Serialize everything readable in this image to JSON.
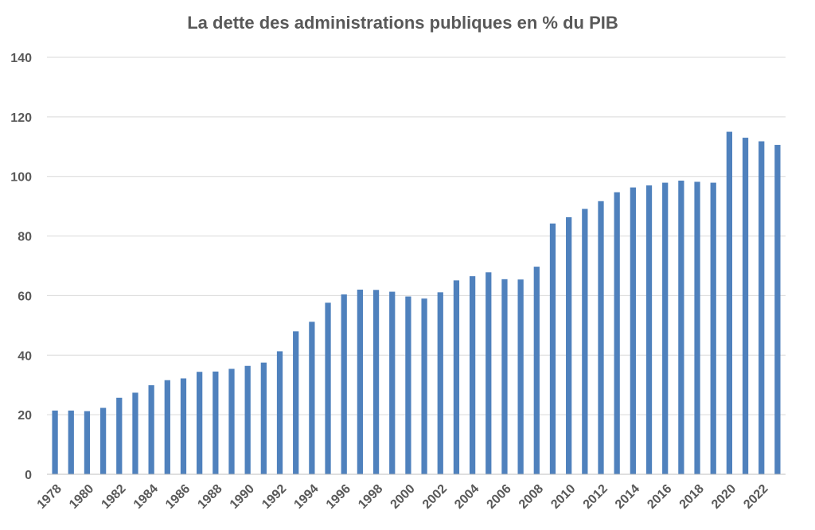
{
  "chart_data": {
    "type": "bar",
    "title": "La dette des administrations publiques en % du PIB",
    "xlabel": "",
    "ylabel": "",
    "ylim": [
      0,
      140
    ],
    "yticks": [
      0,
      20,
      40,
      60,
      80,
      100,
      120,
      140
    ],
    "grid": true,
    "legend": "none",
    "bar_color": "#4f81bd",
    "categories": [
      "1978",
      "1979",
      "1980",
      "1981",
      "1982",
      "1983",
      "1984",
      "1985",
      "1986",
      "1987",
      "1988",
      "1989",
      "1990",
      "1991",
      "1992",
      "1993",
      "1994",
      "1995",
      "1996",
      "1997",
      "1998",
      "1999",
      "2000",
      "2001",
      "2002",
      "2003",
      "2004",
      "2005",
      "2006",
      "2007",
      "2008",
      "2009",
      "2010",
      "2011",
      "2012",
      "2013",
      "2014",
      "2015",
      "2016",
      "2017",
      "2018",
      "2019",
      "2020",
      "2021",
      "2022",
      "2023"
    ],
    "x_tick_labels": [
      "1978",
      "",
      "1980",
      "",
      "1982",
      "",
      "1984",
      "",
      "1986",
      "",
      "1988",
      "",
      "1990",
      "",
      "1992",
      "",
      "1994",
      "",
      "1996",
      "",
      "1998",
      "",
      "2000",
      "",
      "2002",
      "",
      "2004",
      "",
      "2006",
      "",
      "2008",
      "",
      "2010",
      "",
      "2012",
      "",
      "2014",
      "",
      "2016",
      "",
      "2018",
      "",
      "2020",
      "",
      "2022",
      ""
    ],
    "values": [
      21.4,
      21.4,
      21.2,
      22.3,
      25.7,
      27.4,
      29.9,
      31.6,
      32.2,
      34.4,
      34.5,
      35.4,
      36.4,
      37.5,
      41.3,
      48.0,
      51.2,
      57.6,
      60.4,
      62.0,
      61.9,
      61.3,
      59.7,
      59.0,
      61.1,
      65.1,
      66.5,
      67.8,
      65.5,
      65.4,
      69.7,
      84.2,
      86.3,
      89.1,
      91.7,
      94.7,
      96.3,
      97.0,
      97.9,
      98.6,
      98.2,
      97.9,
      115.0,
      113.0,
      111.8,
      110.6
    ]
  }
}
